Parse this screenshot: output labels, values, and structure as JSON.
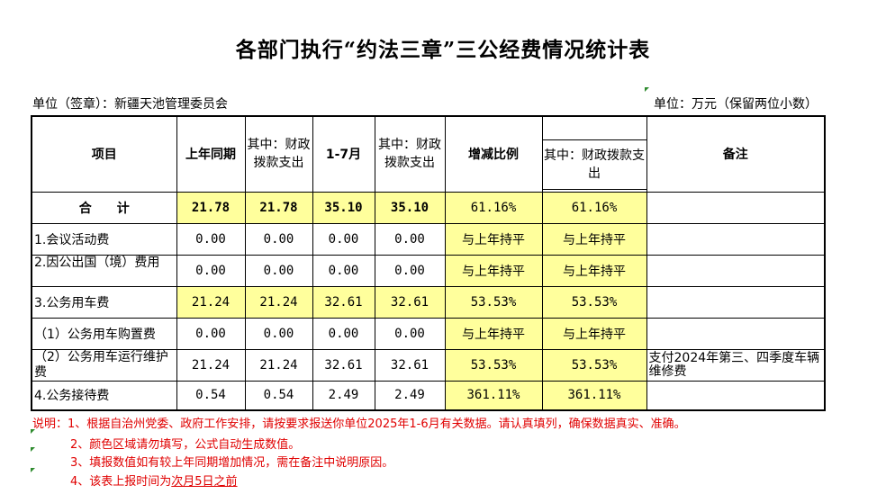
{
  "title": "各部门执行“约法三章”三公经费情况统计表",
  "unit_left": "单位（签章）：新疆天池管理委员会",
  "unit_right": "单位：万元（保留两位小数）",
  "headers": {
    "item": "项目",
    "last_year": "上年同期",
    "last_year_fiscal": "其中：财政拨款支出",
    "jan_jul": "1-7月",
    "jan_jul_fiscal": "其中：财政拨款支出",
    "change": "增减比例",
    "change_fiscal": "其中：财政拨款支出",
    "remark": "备注"
  },
  "rows": [
    {
      "item": "合　　计",
      "last_year": "21.78",
      "last_year_fiscal": "21.78",
      "jan_jul": "35.10",
      "jan_jul_fiscal": "35.10",
      "change": "61.16%",
      "change_fiscal": "61.16%",
      "remark": ""
    },
    {
      "item": "1.会议活动费",
      "last_year": "0.00",
      "last_year_fiscal": "0.00",
      "jan_jul": "0.00",
      "jan_jul_fiscal": "0.00",
      "change": "与上年持平",
      "change_fiscal": "与上年持平",
      "remark": ""
    },
    {
      "item": "2.因公出国（境）费用",
      "last_year": "0.00",
      "last_year_fiscal": "0.00",
      "jan_jul": "0.00",
      "jan_jul_fiscal": "0.00",
      "change": "与上年持平",
      "change_fiscal": "与上年持平",
      "remark": ""
    },
    {
      "item": "3.公务用车费",
      "last_year": "21.24",
      "last_year_fiscal": "21.24",
      "jan_jul": "32.61",
      "jan_jul_fiscal": "32.61",
      "change": "53.53%",
      "change_fiscal": "53.53%",
      "remark": ""
    },
    {
      "item": "（1）公务用车购置费",
      "last_year": "0.00",
      "last_year_fiscal": "0.00",
      "jan_jul": "0.00",
      "jan_jul_fiscal": "0.00",
      "change": "与上年持平",
      "change_fiscal": "与上年持平",
      "remark": ""
    },
    {
      "item": "（2）公务用车运行维护费",
      "last_year": "21.24",
      "last_year_fiscal": "21.24",
      "jan_jul": "32.61",
      "jan_jul_fiscal": "32.61",
      "change": "53.53%",
      "change_fiscal": "53.53%",
      "remark": "支付2024年第三、四季度车辆维修费"
    },
    {
      "item": "4.公务接待费",
      "last_year": "0.54",
      "last_year_fiscal": "0.54",
      "jan_jul": "2.49",
      "jan_jul_fiscal": "2.49",
      "change": "361.11%",
      "change_fiscal": "361.11%",
      "remark": ""
    }
  ],
  "notes": {
    "n1": "说明：1、根据自治州党委、政府工作安排，请按要求报送你单位2025年1-6月有关数据。请认真填列，确保数据真实、准确。",
    "n2": "2、颜色区域请勿填写，公式自动生成数值。",
    "n3": "3、填报数值如有较上年同期增加情况，需在备注中说明原因。",
    "n4_prefix": "4、该表上报时间为",
    "n4_underlined": "次月5日之前"
  },
  "colors": {
    "highlight": "#ffff9c",
    "note_text": "#e00000",
    "corner_tick": "#2e8b2e"
  }
}
